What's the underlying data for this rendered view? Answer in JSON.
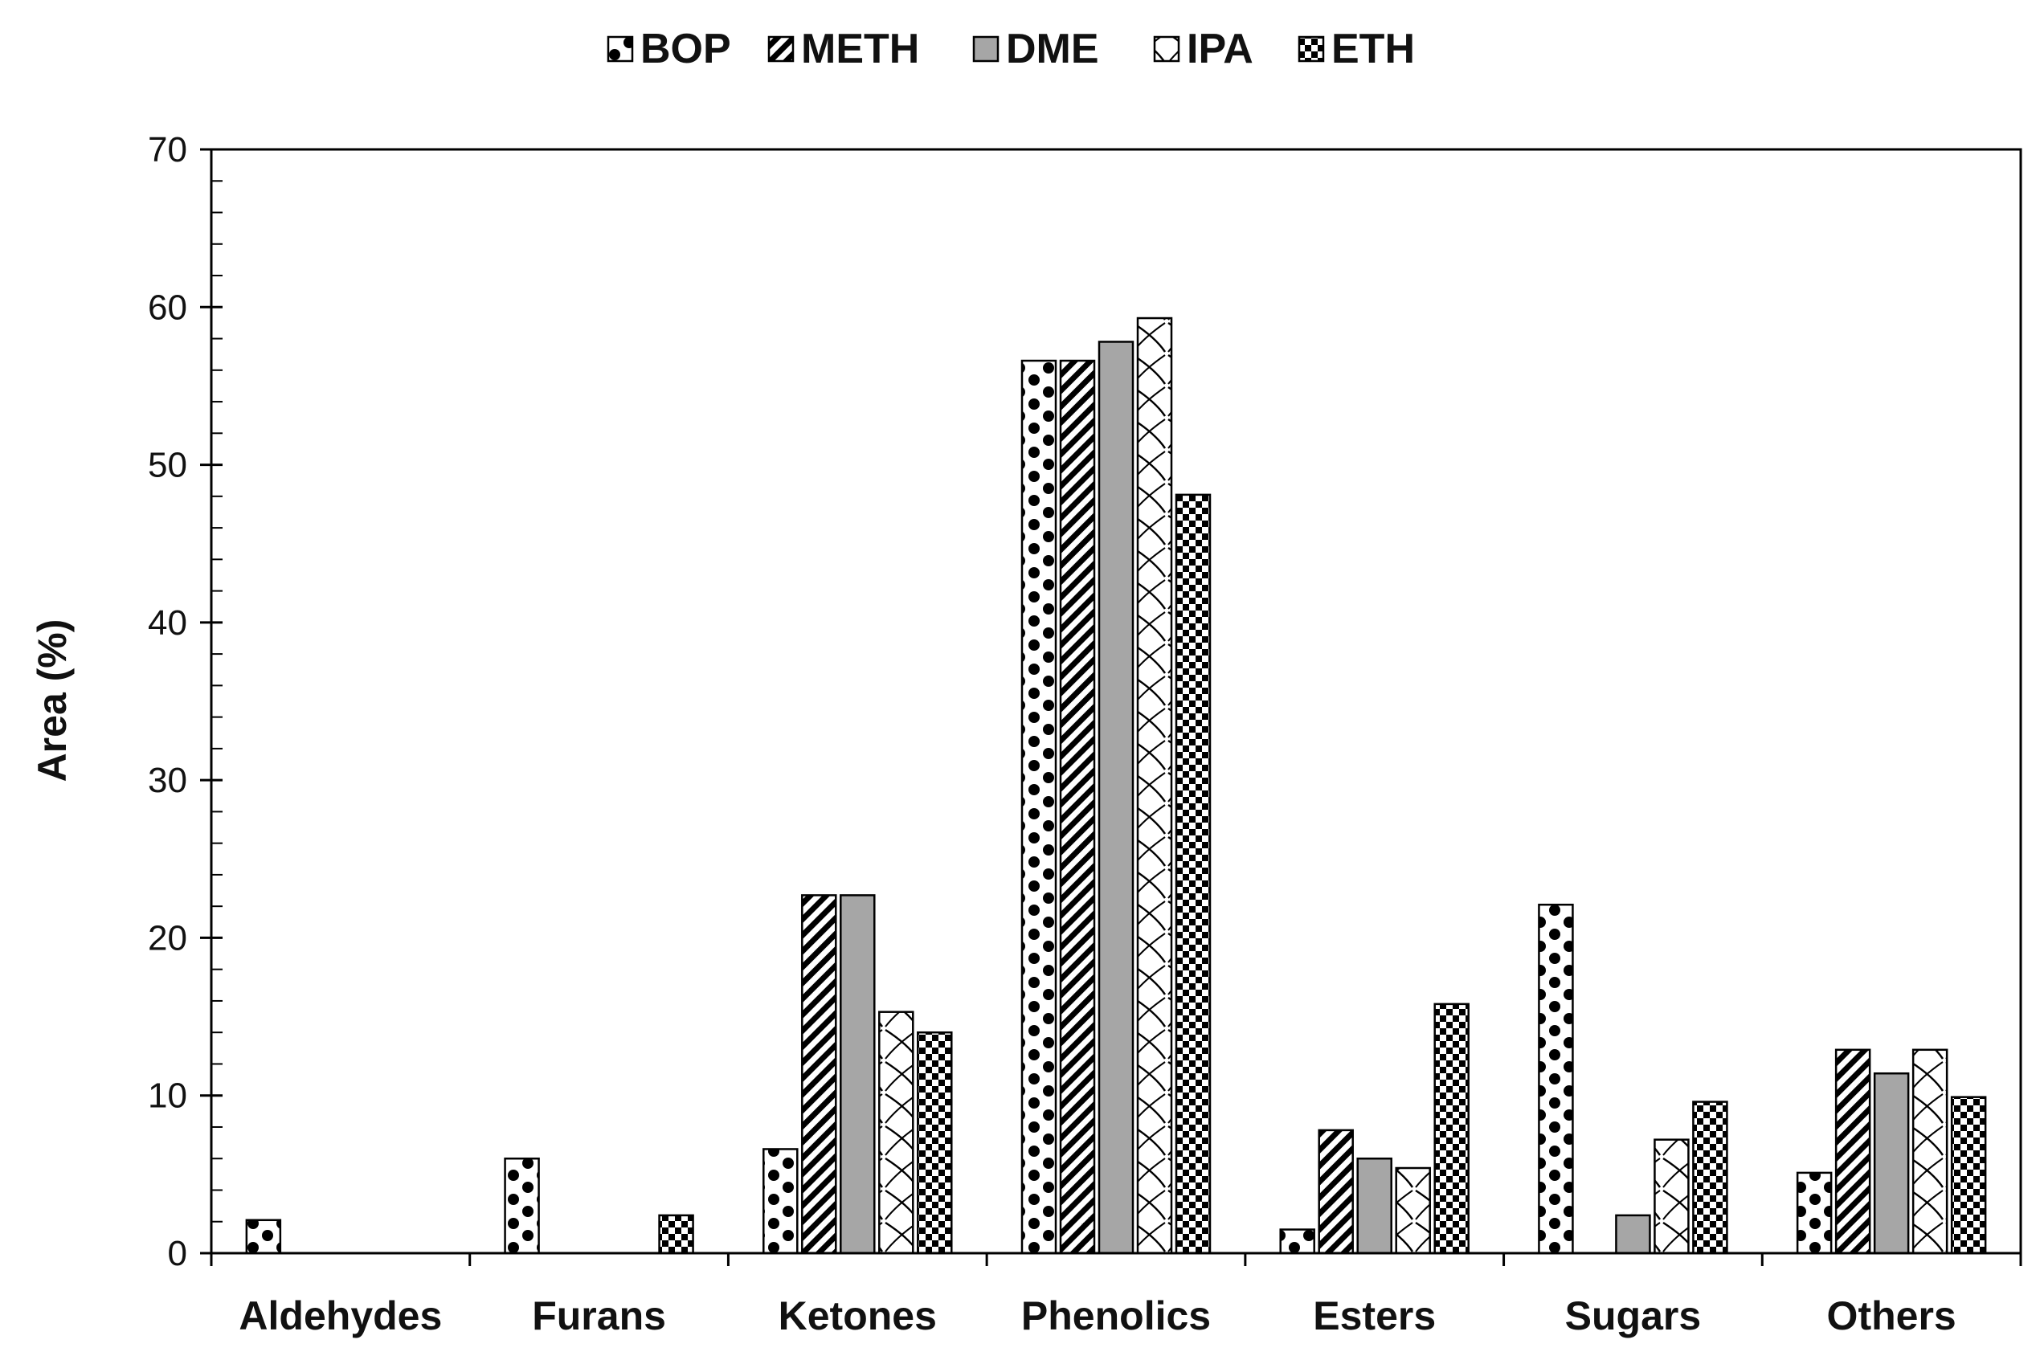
{
  "chart_data": {
    "type": "bar",
    "title": "",
    "xlabel": "",
    "ylabel": "Area (%)",
    "ylim": [
      0,
      70
    ],
    "yticks": [
      0,
      10,
      20,
      30,
      40,
      50,
      60,
      70
    ],
    "grid": false,
    "legend_position": "top-center",
    "categories": [
      "Aldehydes",
      "Furans",
      "Ketones",
      "Phenolics",
      "Esters",
      "Sugars",
      "Others"
    ],
    "series": [
      {
        "name": "BOP",
        "pattern": "circles",
        "values": [
          2.1,
          6.0,
          6.6,
          56.6,
          1.5,
          22.1,
          5.1
        ]
      },
      {
        "name": "METH",
        "pattern": "diagonal",
        "values": [
          0,
          0,
          22.7,
          56.6,
          7.8,
          0,
          12.9
        ]
      },
      {
        "name": "DME",
        "pattern": "solid-gray",
        "values": [
          0,
          0,
          22.7,
          57.8,
          6.0,
          2.4,
          11.4
        ]
      },
      {
        "name": "IPA",
        "pattern": "waves",
        "values": [
          0,
          0,
          15.3,
          59.3,
          5.4,
          7.2,
          12.9
        ]
      },
      {
        "name": "ETH",
        "pattern": "checker",
        "values": [
          0,
          2.4,
          14.0,
          48.1,
          15.8,
          9.6,
          9.9
        ]
      }
    ],
    "colors": {
      "dme_fill": "#a6a6a6",
      "ink": "#000000",
      "background": "#ffffff"
    }
  }
}
